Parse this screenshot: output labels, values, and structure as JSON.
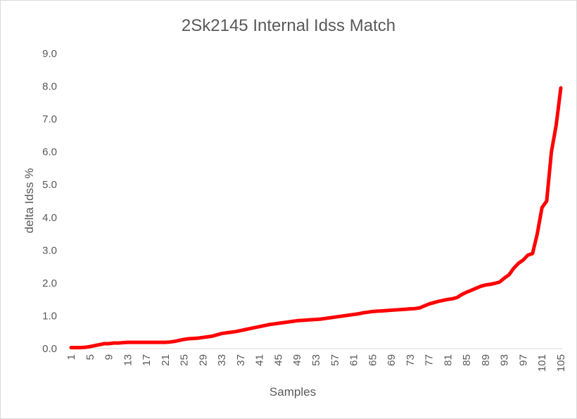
{
  "chart_data": {
    "type": "line",
    "title": "2Sk2145 Internal Idss Match",
    "xlabel": "Samples",
    "ylabel": "delta Idss  %",
    "ylim": [
      0,
      9
    ],
    "yticks": [
      "0.0",
      "1.0",
      "2.0",
      "3.0",
      "4.0",
      "5.0",
      "6.0",
      "7.0",
      "8.0",
      "9.0"
    ],
    "xticks": [
      "1",
      "5",
      "9",
      "13",
      "17",
      "21",
      "25",
      "29",
      "33",
      "37",
      "41",
      "45",
      "49",
      "53",
      "57",
      "61",
      "65",
      "69",
      "73",
      "77",
      "81",
      "85",
      "89",
      "93",
      "97",
      "101",
      "105"
    ],
    "grid": false,
    "line_color": "#ff0000",
    "series": [
      {
        "x": [
          1,
          2,
          3,
          4,
          5,
          6,
          7,
          8,
          9,
          10,
          11,
          12,
          13,
          14,
          15,
          16,
          17,
          18,
          19,
          20,
          21,
          22,
          23,
          24,
          25,
          26,
          27,
          28,
          29,
          30,
          31,
          32,
          33,
          34,
          35,
          36,
          37,
          38,
          39,
          40,
          41,
          42,
          43,
          44,
          45,
          46,
          47,
          48,
          49,
          50,
          51,
          52,
          53,
          54,
          55,
          56,
          57,
          58,
          59,
          60,
          61,
          62,
          63,
          64,
          65,
          66,
          67,
          68,
          69,
          70,
          71,
          72,
          73,
          74,
          75,
          76,
          77,
          78,
          79,
          80,
          81,
          82,
          83,
          84,
          85,
          86,
          87,
          88,
          89,
          90,
          91,
          92,
          93,
          94,
          95,
          96,
          97,
          98,
          99,
          100,
          101,
          102,
          103,
          104,
          105
        ],
        "values": [
          0.03,
          0.03,
          0.03,
          0.04,
          0.06,
          0.09,
          0.12,
          0.15,
          0.15,
          0.17,
          0.17,
          0.18,
          0.19,
          0.19,
          0.19,
          0.19,
          0.19,
          0.19,
          0.19,
          0.19,
          0.19,
          0.2,
          0.22,
          0.25,
          0.28,
          0.3,
          0.31,
          0.32,
          0.34,
          0.36,
          0.38,
          0.42,
          0.46,
          0.48,
          0.5,
          0.52,
          0.55,
          0.58,
          0.61,
          0.64,
          0.67,
          0.7,
          0.73,
          0.75,
          0.77,
          0.79,
          0.81,
          0.83,
          0.85,
          0.86,
          0.87,
          0.88,
          0.89,
          0.9,
          0.92,
          0.94,
          0.96,
          0.98,
          1.0,
          1.02,
          1.04,
          1.06,
          1.09,
          1.11,
          1.13,
          1.14,
          1.15,
          1.16,
          1.17,
          1.18,
          1.19,
          1.2,
          1.21,
          1.22,
          1.24,
          1.3,
          1.36,
          1.4,
          1.44,
          1.47,
          1.5,
          1.52,
          1.56,
          1.65,
          1.72,
          1.78,
          1.84,
          1.9,
          1.94,
          1.96,
          1.99,
          2.03,
          2.15,
          2.25,
          2.45,
          2.6,
          2.7,
          2.85,
          2.9,
          3.5,
          4.3,
          4.5,
          6.0,
          6.8,
          7.95
        ]
      }
    ]
  }
}
